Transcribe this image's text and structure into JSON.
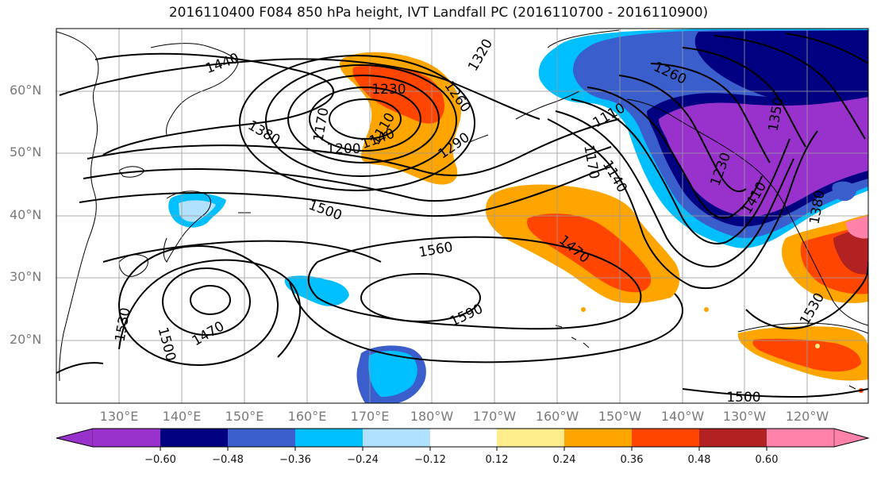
{
  "title": "2016110400 F084 850 hPa height, IVT Landfall PC (2016110700 - 2016110900)",
  "lat_labels": [
    "60°N",
    "50°N",
    "40°N",
    "30°N",
    "20°N"
  ],
  "lon_labels": [
    "130°E",
    "140°E",
    "150°E",
    "160°E",
    "170°E",
    "180°W",
    "170°W",
    "160°W",
    "150°W",
    "140°W",
    "130°W",
    "120°W"
  ],
  "contour_labels": [
    "1440",
    "1320",
    "1260",
    "1230",
    "1260",
    "1110",
    "1380",
    "1170",
    "1200",
    "1140",
    "1290",
    "1110",
    "1170",
    "1140",
    "1350",
    "1230",
    "1410",
    "1380",
    "1500",
    "1560",
    "1470",
    "1530",
    "1500",
    "1470",
    "1590",
    "1530",
    "1500"
  ],
  "colorbar": {
    "ticks": [
      "−0.60",
      "−0.48",
      "−0.36",
      "−0.24",
      "−0.12",
      "0.12",
      "0.24",
      "0.36",
      "0.48",
      "0.60"
    ],
    "colors": [
      "#9932cc",
      "#000080",
      "#3a5fcd",
      "#00bfff",
      "#b0e2ff",
      "#ffffff",
      "#ffec8b",
      "#ffa500",
      "#ff4500",
      "#b22222",
      "#ff82ab"
    ]
  }
}
